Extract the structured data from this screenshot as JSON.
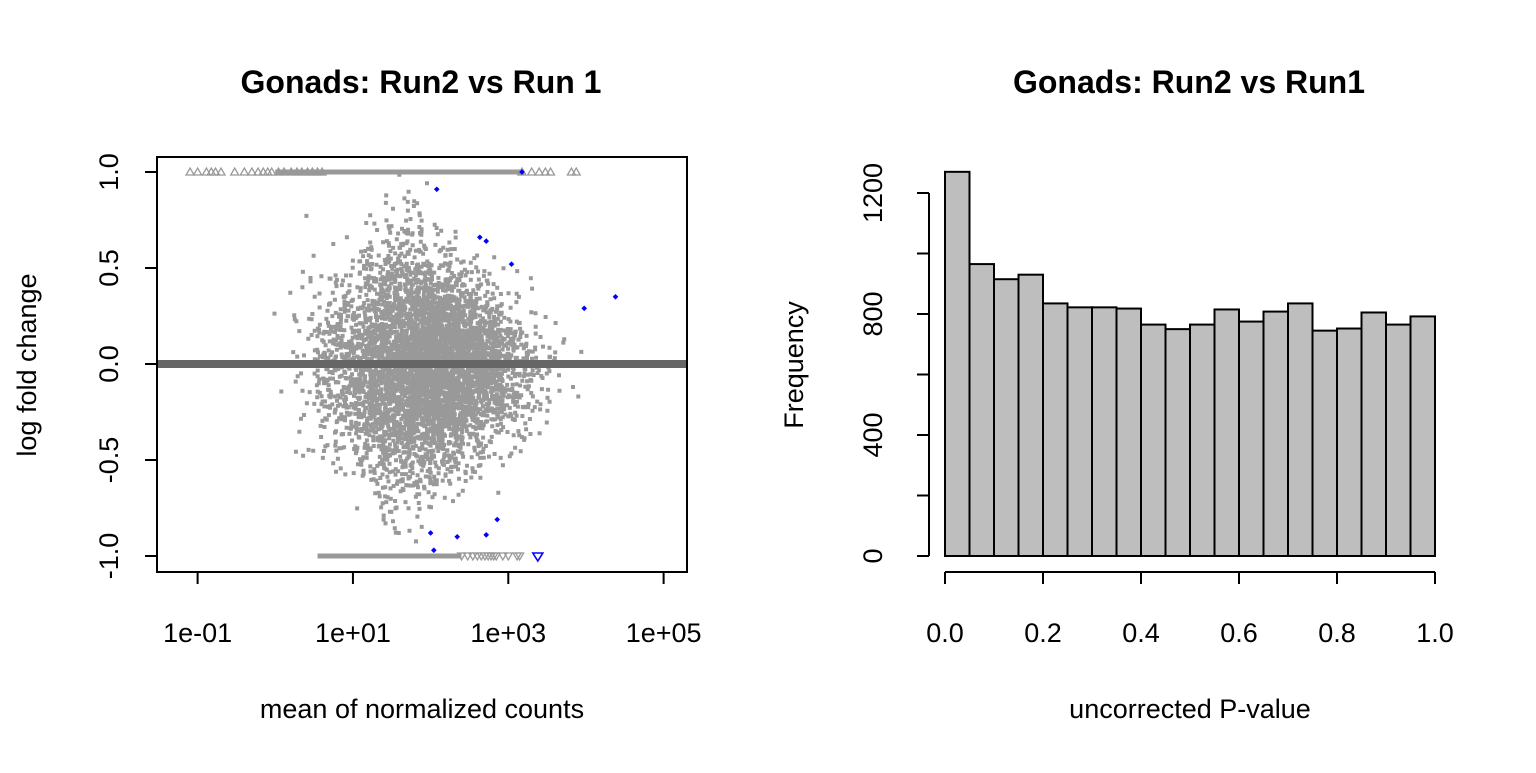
{
  "chart_data": [
    {
      "type": "scatter",
      "title": "Gonads: Run2 vs Run 1",
      "xlabel": "mean of normalized counts",
      "ylabel": "log fold change",
      "x_scale": "log10",
      "xlim": [
        0.03,
        200000
      ],
      "ylim": [
        -1.0,
        1.0
      ],
      "x_ticks": [
        {
          "value": 0.1,
          "label": "1e-01"
        },
        {
          "value": 10,
          "label": "1e+01"
        },
        {
          "value": 1000,
          "label": "1e+03"
        },
        {
          "value": 100000,
          "label": "1e+05"
        }
      ],
      "y_ticks": [
        {
          "value": -1.0,
          "label": "-1.0"
        },
        {
          "value": -0.5,
          "label": "-0.5"
        },
        {
          "value": 0.0,
          "label": "0.0"
        },
        {
          "value": 0.5,
          "label": "0.5"
        },
        {
          "value": 1.0,
          "label": "1.0"
        }
      ],
      "colors": {
        "points": "#999999",
        "significant": "#0000ff",
        "zero_line": "#666666"
      },
      "significant_points": [
        {
          "x": 120,
          "y": 0.91
        },
        {
          "x": 430,
          "y": 0.66
        },
        {
          "x": 520,
          "y": 0.64
        },
        {
          "x": 1100,
          "y": 0.52
        },
        {
          "x": 1500,
          "y": 1.0
        },
        {
          "x": 9500,
          "y": 0.29
        },
        {
          "x": 24000,
          "y": 0.35
        },
        {
          "x": 100,
          "y": -0.88
        },
        {
          "x": 220,
          "y": -0.9
        },
        {
          "x": 520,
          "y": -0.89
        },
        {
          "x": 720,
          "y": -0.81
        },
        {
          "x": 110,
          "y": -0.97
        },
        {
          "x": 2400,
          "y": -1.0
        }
      ],
      "clipped_triangles_top_x": [
        0.08,
        0.1,
        0.13,
        0.15,
        0.17,
        0.2,
        0.3,
        0.4,
        0.5,
        0.6,
        0.7,
        0.8,
        0.9,
        1.1,
        1.3,
        1.6,
        1.9,
        2.2,
        2.6,
        3,
        3.5,
        4,
        1500,
        2000,
        2500,
        3000,
        3500,
        6500,
        7500
      ],
      "clipped_triangles_bottom_x": [
        250,
        300,
        350,
        400,
        450,
        500,
        550,
        600,
        650,
        700,
        850,
        1000,
        1300,
        1400
      ]
    },
    {
      "type": "bar",
      "title": "Gonads: Run2 vs Run1",
      "xlabel": "uncorrected P-value",
      "ylabel": "Frequency",
      "bin_width": 0.05,
      "bins_start": [
        0.0,
        0.05,
        0.1,
        0.15,
        0.2,
        0.25,
        0.3,
        0.35,
        0.4,
        0.45,
        0.5,
        0.55,
        0.6,
        0.65,
        0.7,
        0.75,
        0.8,
        0.85,
        0.9,
        0.95
      ],
      "values": [
        1270,
        965,
        915,
        930,
        835,
        822,
        822,
        818,
        765,
        750,
        765,
        815,
        775,
        808,
        835,
        745,
        752,
        805,
        765,
        792
      ],
      "xlim": [
        0,
        1
      ],
      "ylim": [
        0,
        1300
      ],
      "x_ticks": [
        {
          "value": 0.0,
          "label": "0.0"
        },
        {
          "value": 0.2,
          "label": "0.2"
        },
        {
          "value": 0.4,
          "label": "0.4"
        },
        {
          "value": 0.6,
          "label": "0.6"
        },
        {
          "value": 0.8,
          "label": "0.8"
        },
        {
          "value": 1.0,
          "label": "1.0"
        }
      ],
      "y_ticks": [
        {
          "value": 0,
          "label": "0"
        },
        {
          "value": 400,
          "label": "400"
        },
        {
          "value": 800,
          "label": "800"
        },
        {
          "value": 1200,
          "label": "1200"
        }
      ],
      "y_minor_ticks": [
        200,
        600,
        1000
      ],
      "colors": {
        "bar_fill": "#bebebe",
        "bar_stroke": "#000000"
      }
    }
  ]
}
